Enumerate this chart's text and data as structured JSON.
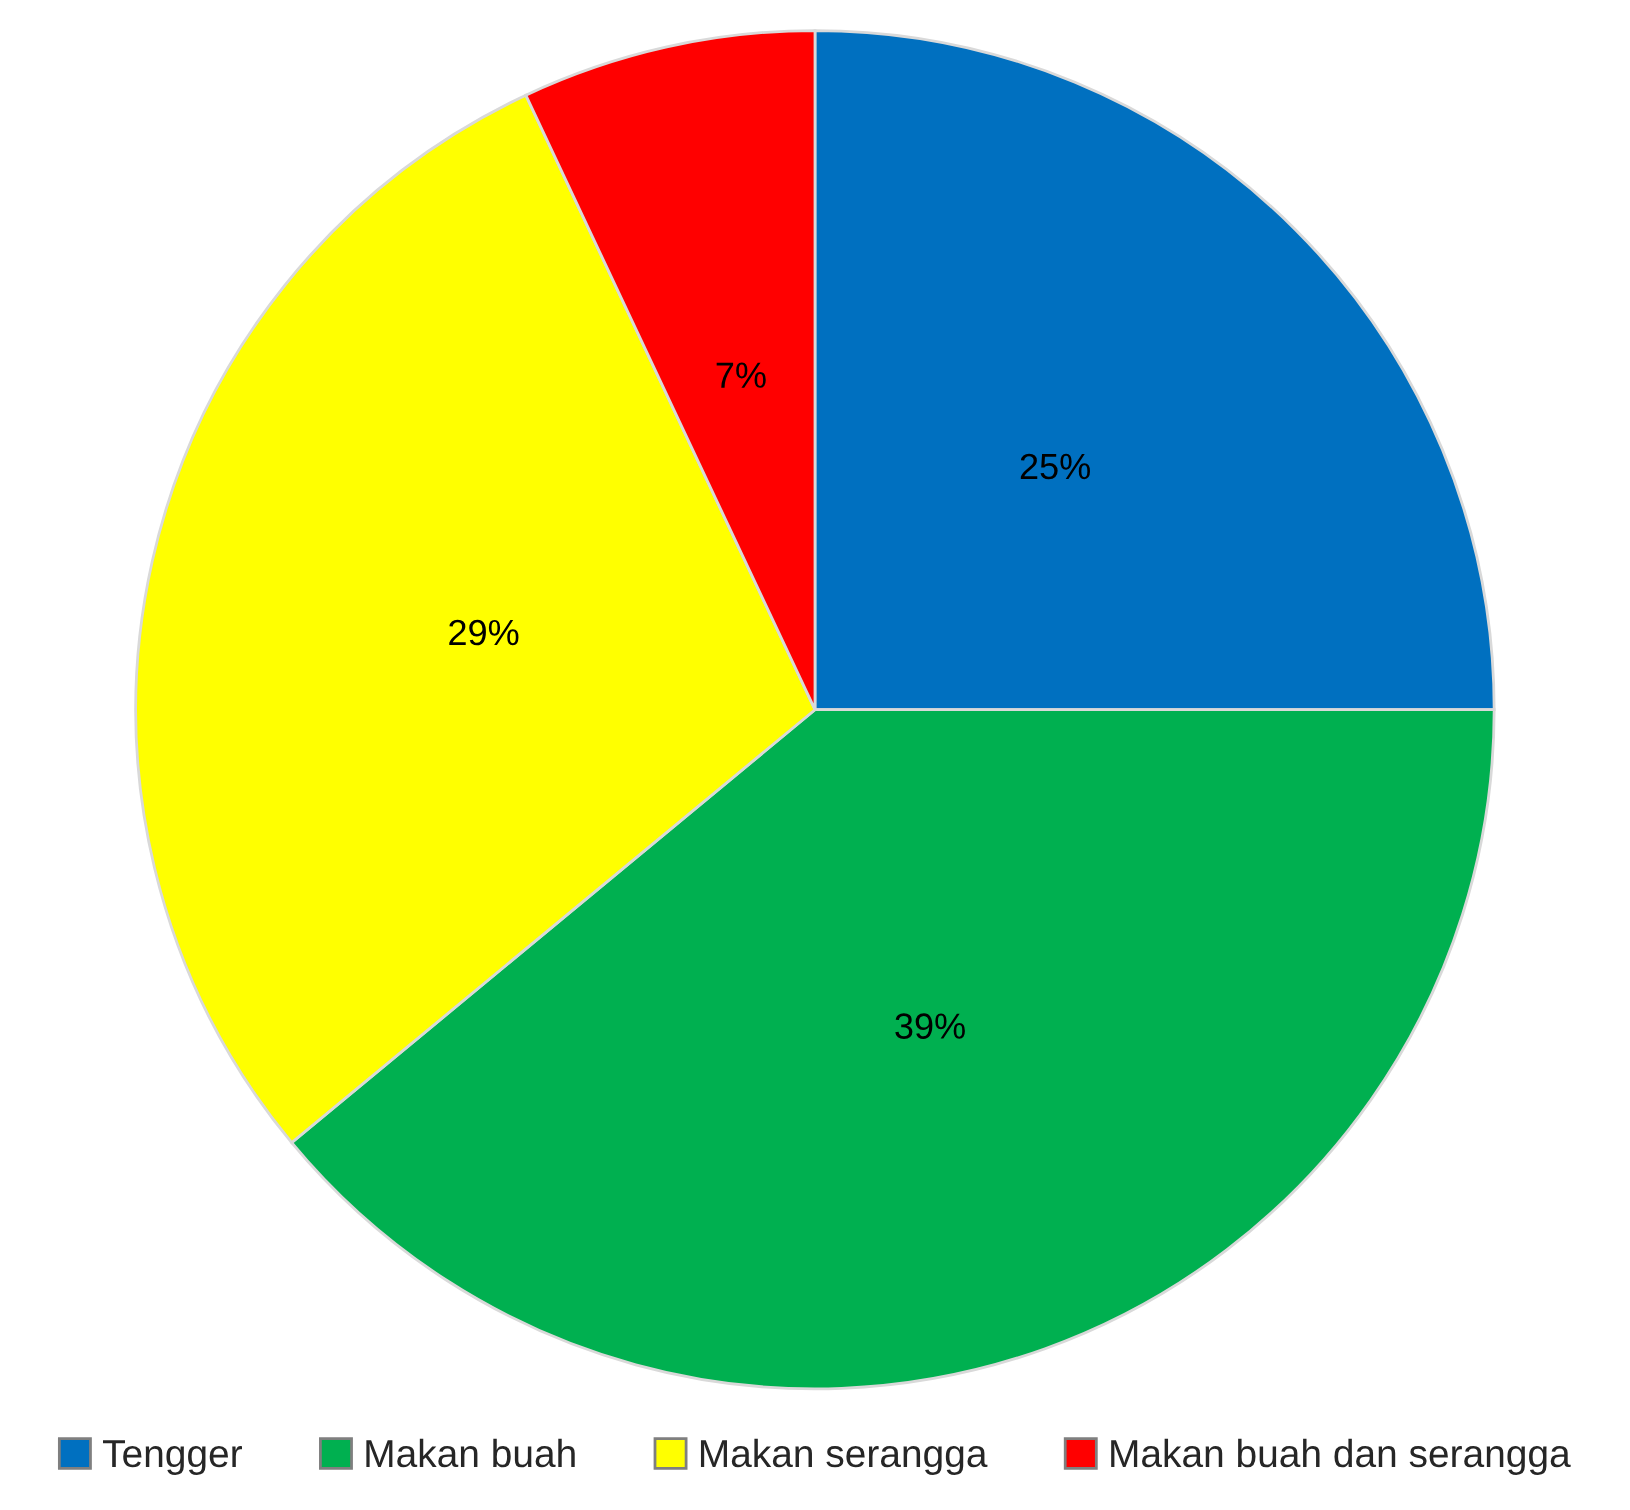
{
  "chart_data": {
    "type": "pie",
    "categories": [
      "Tengger",
      "Makan buah",
      "Makan serangga",
      "Makan buah dan serangga"
    ],
    "values": [
      25,
      39,
      29,
      7
    ],
    "colors": [
      "#0070c0",
      "#00b050",
      "#ffff00",
      "#ff0000"
    ],
    "value_labels": [
      "25%",
      "39%",
      "29%",
      "7%"
    ],
    "legend": "bottom"
  }
}
